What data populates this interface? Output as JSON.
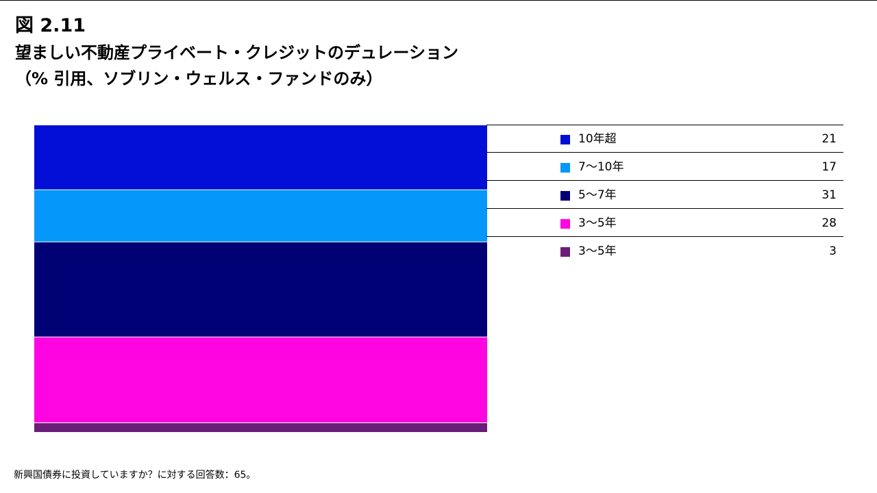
{
  "figure_label": "図 2.11",
  "title": "望ましい不動産プライベート・クレジットのデュレーション",
  "subtitle": "（% 引用、ソブリン・ウェルス・ファンドのみ）",
  "footnote": "新興国債券に投資していますか？に対する回答数：65。",
  "chart_data": {
    "type": "bar",
    "stacked": true,
    "orientation": "vertical",
    "categories": [
      "10年超",
      "7～10年",
      "5～7年",
      "3～5年",
      "3～5年"
    ],
    "values": [
      21,
      17,
      31,
      28,
      3
    ],
    "colors": [
      "#000ED6",
      "#0597FA",
      "#000174",
      "#FF05E1",
      "#6A1E78"
    ],
    "ylim": [
      0,
      100
    ],
    "grid": false,
    "legend_position": "right"
  },
  "legend": [
    {
      "label": "10年超",
      "value": "21",
      "color": "#000ED6"
    },
    {
      "label": "7～10年",
      "value": "17",
      "color": "#0597FA"
    },
    {
      "label": "5～7年",
      "value": "31",
      "color": "#000174"
    },
    {
      "label": "3～5年",
      "value": "28",
      "color": "#FF05E1"
    },
    {
      "label": "3～5年",
      "value": "3",
      "color": "#6A1E78"
    }
  ]
}
